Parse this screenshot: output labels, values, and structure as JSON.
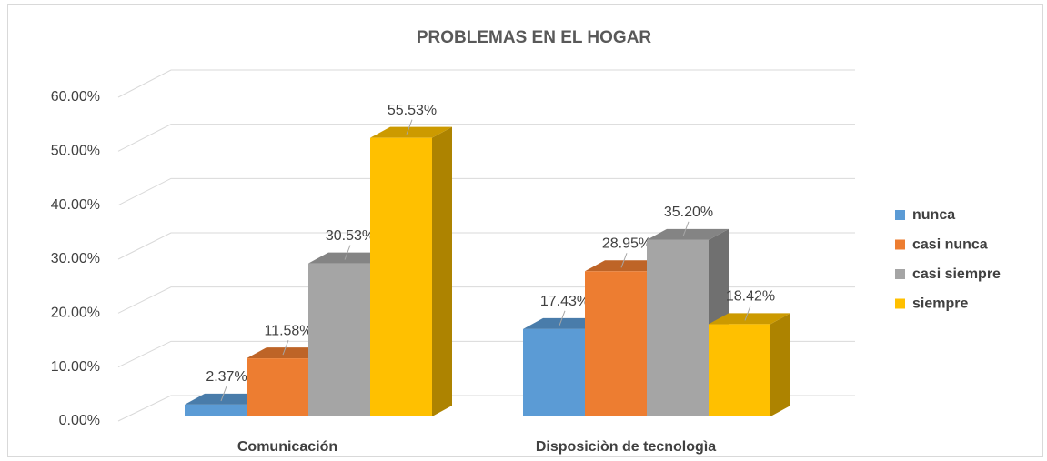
{
  "chart_data": {
    "type": "bar3d",
    "title": "PROBLEMAS EN EL HOGAR",
    "categories": [
      "Comunicación",
      "Disposiciòn de tecnologìa"
    ],
    "series": [
      {
        "name": "nunca",
        "color": "#5b9bd5",
        "values": [
          2.37,
          17.43
        ],
        "value_labels": [
          "2.37%",
          "17.43%"
        ]
      },
      {
        "name": "casi nunca",
        "color": "#ed7d31",
        "values": [
          11.58,
          28.95
        ],
        "value_labels": [
          "11.58%",
          "28.95%"
        ]
      },
      {
        "name": "casi siempre",
        "color": "#a5a5a5",
        "values": [
          30.53,
          35.2
        ],
        "value_labels": [
          "30.53%",
          "35.20%"
        ]
      },
      {
        "name": "siempre",
        "color": "#ffc000",
        "values": [
          55.53,
          18.42
        ],
        "value_labels": [
          "55.53%",
          "18.42%"
        ]
      }
    ],
    "ylim": [
      0,
      60
    ],
    "yticks": [
      {
        "value": 0,
        "label": "0.00%"
      },
      {
        "value": 10,
        "label": "10.00%"
      },
      {
        "value": 20,
        "label": "20.00%"
      },
      {
        "value": 30,
        "label": "30.00%"
      },
      {
        "value": 40,
        "label": "40.00%"
      },
      {
        "value": 50,
        "label": "50.00%"
      },
      {
        "value": 60,
        "label": "60.00%"
      }
    ],
    "grid": true,
    "legend": "right"
  }
}
